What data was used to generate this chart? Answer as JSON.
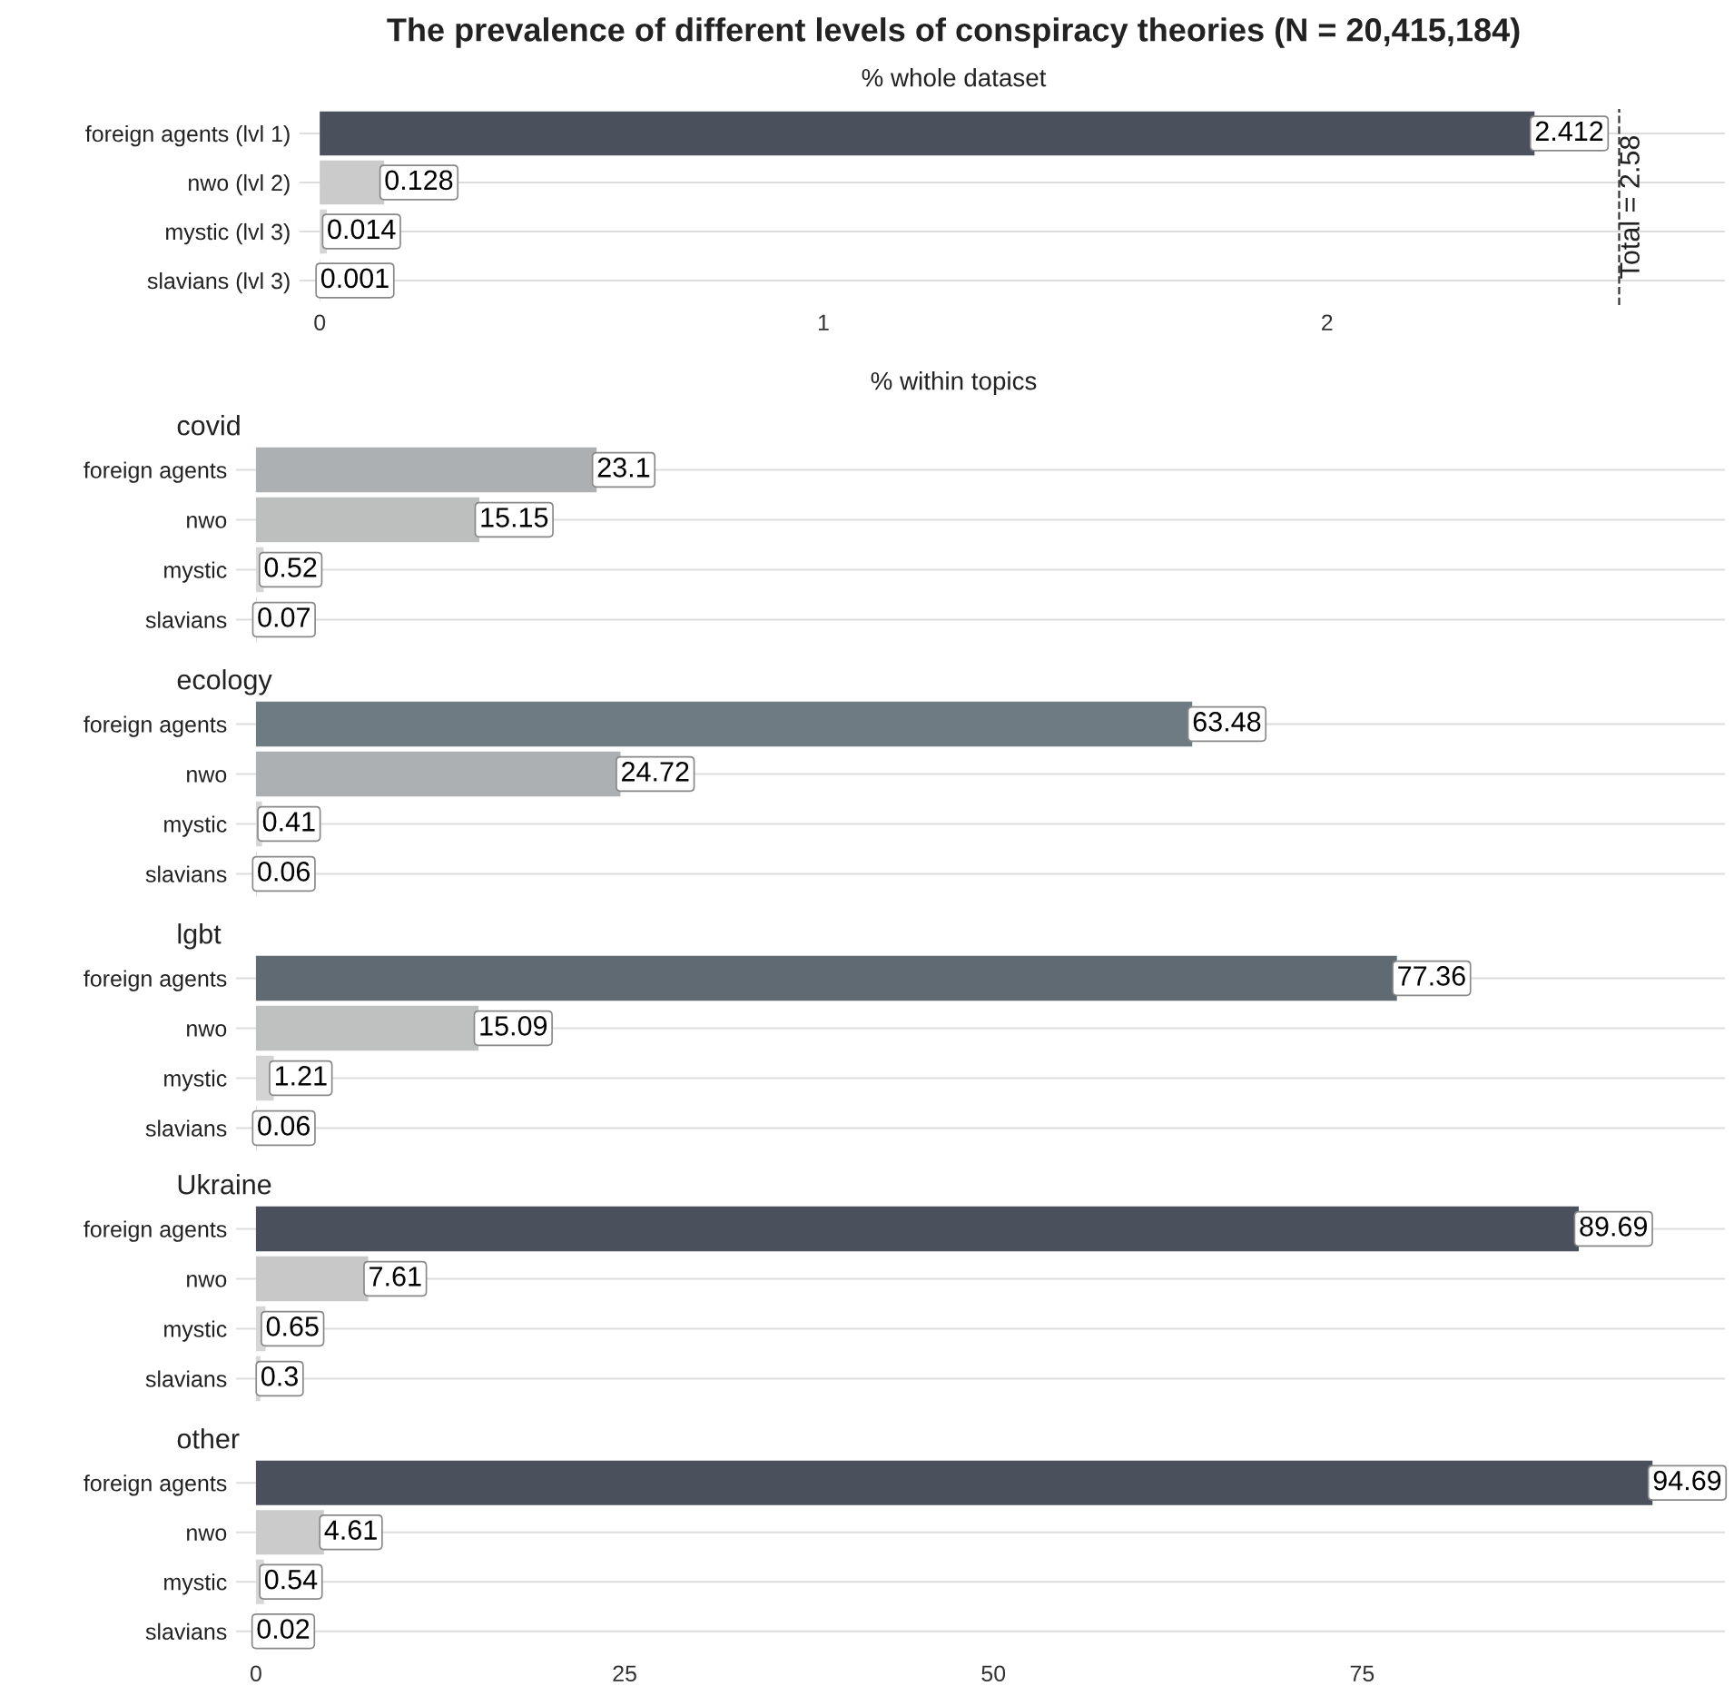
{
  "chart_data": [
    {
      "type": "bar",
      "orientation": "horizontal",
      "title": "The prevalence of different levels of conspiracy theories (N = 20,415,184)",
      "subtitle": "% whole dataset",
      "categories": [
        "foreign agents (lvl 1)",
        "nwo (lvl 2)",
        "mystic (lvl 3)",
        "slavians (lvl 3)"
      ],
      "values": [
        2.412,
        0.128,
        0.014,
        0.001
      ],
      "colors": [
        "#4a505c",
        "#cbcbcb",
        "#d6d6d6",
        "#d9d9d9"
      ],
      "xlim": [
        -0.04,
        2.79
      ],
      "xticks": [
        0,
        1,
        2
      ],
      "ref_lines": [
        {
          "axis": "x",
          "value": 2.58,
          "label": "Total = 2.58",
          "line_style": "dashed",
          "color": "#333333"
        }
      ],
      "data_labels": true,
      "grid": "y",
      "legend": false
    },
    {
      "type": "bar",
      "orientation": "horizontal",
      "title": "covid",
      "subtitle": "% within topics",
      "categories": [
        "foreign agents",
        "nwo",
        "mystic",
        "slavians"
      ],
      "values": [
        23.1,
        15.15,
        0.52,
        0.07
      ],
      "colors": [
        "#adb0b2",
        "#bdbfbf",
        "#d6d6d6",
        "#d9d9d9"
      ],
      "xlim": [
        -1.35,
        99.6
      ],
      "xticks": [
        0,
        25,
        50,
        75
      ],
      "tick_labels": "y",
      "data_labels": true,
      "grid": "y",
      "legend": false
    },
    {
      "type": "bar",
      "orientation": "horizontal",
      "title": "ecology",
      "categories": [
        "foreign agents",
        "nwo",
        "mystic",
        "slavians"
      ],
      "values": [
        63.48,
        24.72,
        0.41,
        0.06
      ],
      "colors": [
        "#6e7b83",
        "#adb0b2",
        "#d6d6d6",
        "#d9d9d9"
      ],
      "xlim": [
        -1.35,
        99.6
      ],
      "xticks": [
        0,
        25,
        50,
        75
      ],
      "tick_labels": "y",
      "data_labels": true,
      "grid": "y",
      "legend": false
    },
    {
      "type": "bar",
      "orientation": "horizontal",
      "title": "lgbt",
      "categories": [
        "foreign agents",
        "nwo",
        "mystic",
        "slavians"
      ],
      "values": [
        77.36,
        15.09,
        1.21,
        0.06
      ],
      "colors": [
        "#5f6a73",
        "#bfc0c0",
        "#d3d3d3",
        "#d9d9d9"
      ],
      "xlim": [
        -1.35,
        99.6
      ],
      "xticks": [
        0,
        25,
        50,
        75
      ],
      "tick_labels": "y",
      "data_labels": true,
      "grid": "y",
      "legend": false
    },
    {
      "type": "bar",
      "orientation": "horizontal",
      "title": "Ukraine",
      "categories": [
        "foreign agents",
        "nwo",
        "mystic",
        "slavians"
      ],
      "values": [
        89.69,
        7.61,
        0.65,
        0.3
      ],
      "colors": [
        "#4a505c",
        "#c8c8c8",
        "#d6d6d6",
        "#d7d7d7"
      ],
      "xlim": [
        -1.35,
        99.6
      ],
      "xticks": [
        0,
        25,
        50,
        75
      ],
      "tick_labels": "y",
      "data_labels": true,
      "grid": "y",
      "legend": false
    },
    {
      "type": "bar",
      "orientation": "horizontal",
      "title": "other",
      "categories": [
        "foreign agents",
        "nwo",
        "mystic",
        "slavians"
      ],
      "values": [
        94.69,
        4.61,
        0.54,
        0.02
      ],
      "colors": [
        "#4a505c",
        "#cbcbcb",
        "#d6d6d6",
        "#d9d9d9"
      ],
      "xlim": [
        -1.35,
        99.6
      ],
      "xticks": [
        0,
        25,
        50,
        75
      ],
      "data_labels": true,
      "grid": "y",
      "legend": false
    }
  ]
}
